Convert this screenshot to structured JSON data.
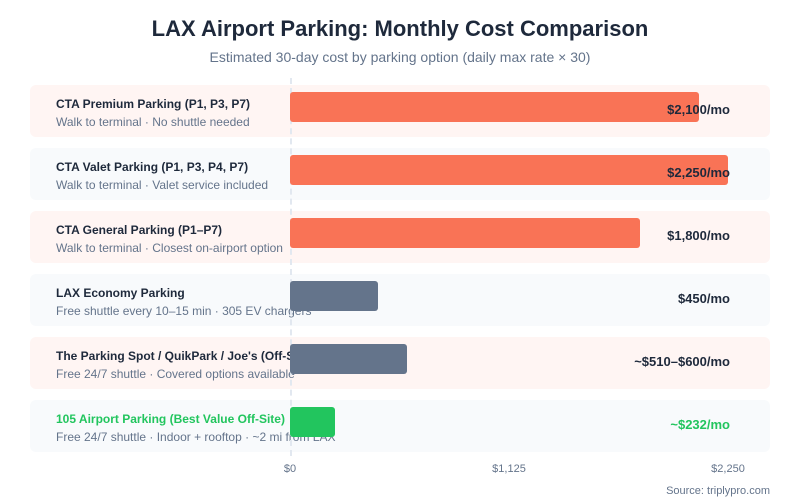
{
  "chart_data": {
    "type": "bar",
    "title": "LAX Airport Parking: Monthly Cost Comparison",
    "subtitle": "Estimated 30-day cost by parking option (daily max rate × 30)",
    "xlim": [
      0,
      2250
    ],
    "ticks": [
      "$0",
      "$1,125",
      "$2,250"
    ],
    "tick_values": [
      0,
      1125,
      2250
    ],
    "source": "Source: triplypro.com",
    "rows": [
      {
        "name": "CTA Premium Parking (P1, P3, P7)",
        "desc": "Walk to terminal · No shuttle needed",
        "value": 2100,
        "label": "$2,100/mo",
        "color": "#f97356",
        "bg": "pink",
        "highlight": false
      },
      {
        "name": "CTA Valet Parking (P1, P3, P4, P7)",
        "desc": "Walk to terminal · Valet service included",
        "value": 2250,
        "label": "$2,250/mo",
        "color": "#f97356",
        "bg": "gray",
        "highlight": false
      },
      {
        "name": "CTA General Parking (P1–P7)",
        "desc": "Walk to terminal · Closest on-airport option",
        "value": 1800,
        "label": "$1,800/mo",
        "color": "#f97356",
        "bg": "pink",
        "highlight": false
      },
      {
        "name": "LAX Economy Parking",
        "desc": "Free shuttle every 10–15 min · 305 EV chargers",
        "value": 450,
        "label": "$450/mo",
        "color": "#64748b",
        "bg": "gray",
        "highlight": false
      },
      {
        "name": "The Parking Spot / QuikPark / Joe's (Off-Site)",
        "desc": "Free 24/7 shuttle · Covered options available",
        "value": 600,
        "label": "~$510–$600/mo",
        "color": "#64748b",
        "bg": "pink",
        "highlight": false
      },
      {
        "name": "105 Airport Parking (Best Value Off-Site)",
        "desc": "Free 24/7 shuttle · Indoor + rooftop · ~2 mi from LAX",
        "value": 232,
        "label": "~$232/mo",
        "color": "#22c55e",
        "bg": "gray",
        "highlight": true
      }
    ]
  }
}
